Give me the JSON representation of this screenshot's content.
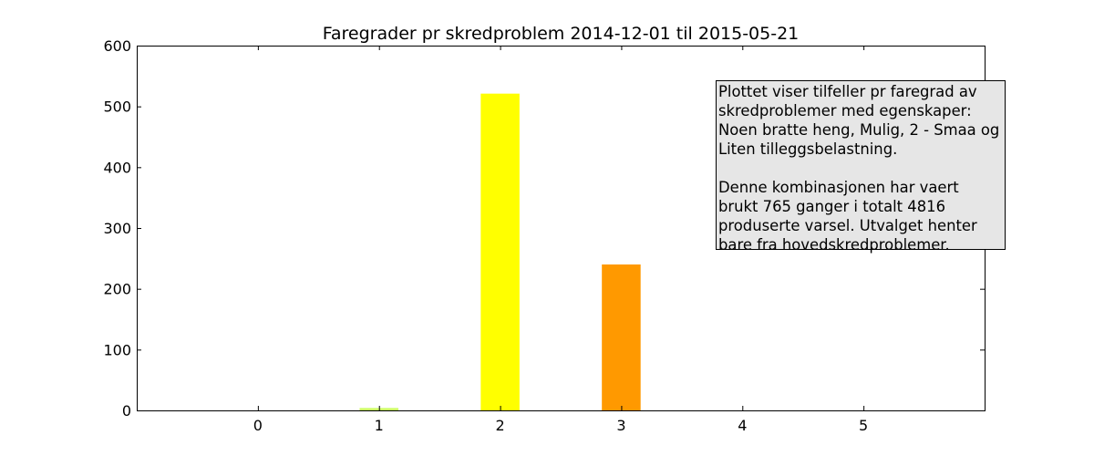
{
  "chart_data": {
    "type": "bar",
    "title": "Faregrader pr skredproblem 2014-12-01 til 2015-05-21",
    "xlabel": "",
    "ylabel": "",
    "categories": [
      "0",
      "1",
      "2",
      "3",
      "4",
      "5"
    ],
    "values": [
      0,
      4,
      521,
      240,
      0,
      0
    ],
    "bar_colors": [
      "#cccccc",
      "#ccff66",
      "#ffff00",
      "#ff9900",
      "#ff0000",
      "#000000"
    ],
    "xlim": [
      -1,
      6
    ],
    "ylim": [
      0,
      600
    ],
    "yticks": [
      0,
      100,
      200,
      300,
      400,
      500,
      600
    ],
    "xticks": [
      0,
      1,
      2,
      3,
      4,
      5
    ],
    "grid": false,
    "annotation": {
      "paragraph1": "Plottet viser tilfeller pr faregrad av skredproblemer med egenskaper: Noen bratte heng, Mulig, 2 - Smaa og Liten tilleggsbelastning.",
      "paragraph2": "Denne kombinasjonen har vaert brukt 765 ganger i totalt 4816 produserte varsel. Utvalget henter bare fra hovedskredproblemer.",
      "placement": "top-right"
    }
  }
}
